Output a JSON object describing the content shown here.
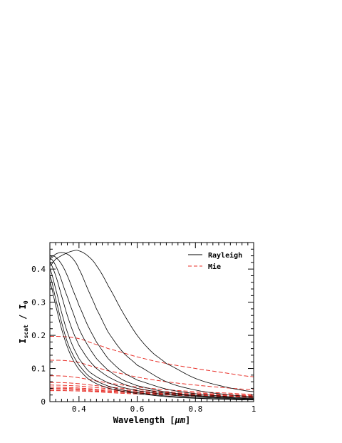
{
  "chart_data": {
    "type": "line",
    "xlabel_prefix": "Wavelength [",
    "xlabel_unit": "μm",
    "xlabel_suffix": "]",
    "ylabel_main": "I",
    "ylabel_sub": "scat",
    "ylabel_mid": " / I",
    "ylabel_sub2": "0",
    "xlim": [
      0.3,
      1.0
    ],
    "ylim": [
      0,
      0.48
    ],
    "xticks": [
      0.4,
      0.6,
      0.8,
      1.0
    ],
    "xtick_labels": [
      "0.4",
      "0.6",
      "0.8",
      "1"
    ],
    "yticks": [
      0,
      0.1,
      0.2,
      0.3,
      0.4
    ],
    "ytick_labels": [
      "0",
      "0.1",
      "0.2",
      "0.3",
      "0.4"
    ],
    "legend_position": "top-right",
    "legend": [
      {
        "name": "Rayleigh",
        "color": "#000000",
        "dash": "solid"
      },
      {
        "name": "Mie",
        "color": "#e8312a",
        "dash": "dashed"
      }
    ],
    "rayleigh_curves": [
      {
        "x": [
          0.3,
          0.32,
          0.35,
          0.38,
          0.4,
          0.43,
          0.46,
          0.5,
          0.55,
          0.6,
          0.65,
          0.7,
          0.8,
          0.9,
          1.0
        ],
        "y": [
          0.41,
          0.43,
          0.445,
          0.455,
          0.455,
          0.44,
          0.41,
          0.35,
          0.27,
          0.2,
          0.15,
          0.115,
          0.07,
          0.045,
          0.03
        ]
      },
      {
        "x": [
          0.3,
          0.32,
          0.34,
          0.36,
          0.38,
          0.4,
          0.43,
          0.46,
          0.5,
          0.55,
          0.6,
          0.7,
          0.8,
          0.9,
          1.0
        ],
        "y": [
          0.43,
          0.445,
          0.45,
          0.445,
          0.43,
          0.4,
          0.34,
          0.28,
          0.21,
          0.15,
          0.11,
          0.06,
          0.035,
          0.022,
          0.015
        ]
      },
      {
        "x": [
          0.3,
          0.31,
          0.32,
          0.34,
          0.36,
          0.38,
          0.4,
          0.43,
          0.46,
          0.5,
          0.55,
          0.6,
          0.7,
          0.8,
          0.9,
          1.0
        ],
        "y": [
          0.435,
          0.44,
          0.435,
          0.415,
          0.38,
          0.335,
          0.29,
          0.23,
          0.18,
          0.13,
          0.09,
          0.065,
          0.038,
          0.024,
          0.016,
          0.011
        ]
      },
      {
        "x": [
          0.3,
          0.31,
          0.33,
          0.35,
          0.37,
          0.4,
          0.43,
          0.46,
          0.5,
          0.55,
          0.6,
          0.7,
          0.8,
          0.9,
          1.0
        ],
        "y": [
          0.43,
          0.425,
          0.39,
          0.34,
          0.29,
          0.22,
          0.17,
          0.13,
          0.095,
          0.066,
          0.048,
          0.029,
          0.019,
          0.013,
          0.009
        ]
      },
      {
        "x": [
          0.3,
          0.32,
          0.34,
          0.36,
          0.38,
          0.4,
          0.43,
          0.46,
          0.5,
          0.55,
          0.6,
          0.7,
          0.8,
          0.9,
          1.0
        ],
        "y": [
          0.42,
          0.38,
          0.32,
          0.26,
          0.21,
          0.17,
          0.13,
          0.1,
          0.075,
          0.054,
          0.04,
          0.025,
          0.017,
          0.012,
          0.009
        ]
      },
      {
        "x": [
          0.3,
          0.32,
          0.34,
          0.36,
          0.38,
          0.4,
          0.43,
          0.46,
          0.5,
          0.55,
          0.6,
          0.7,
          0.8,
          0.9,
          1.0
        ],
        "y": [
          0.4,
          0.34,
          0.27,
          0.21,
          0.165,
          0.13,
          0.095,
          0.075,
          0.057,
          0.043,
          0.033,
          0.021,
          0.014,
          0.01,
          0.007
        ]
      },
      {
        "x": [
          0.3,
          0.32,
          0.34,
          0.36,
          0.38,
          0.4,
          0.43,
          0.46,
          0.5,
          0.55,
          0.6,
          0.7,
          0.8,
          0.9,
          1.0
        ],
        "y": [
          0.38,
          0.31,
          0.24,
          0.18,
          0.14,
          0.11,
          0.08,
          0.062,
          0.047,
          0.035,
          0.027,
          0.017,
          0.011,
          0.008,
          0.006
        ]
      },
      {
        "x": [
          0.3,
          0.32,
          0.34,
          0.36,
          0.38,
          0.4,
          0.43,
          0.46,
          0.5,
          0.55,
          0.6,
          0.7,
          0.8,
          0.9,
          1.0
        ],
        "y": [
          0.36,
          0.29,
          0.22,
          0.165,
          0.125,
          0.097,
          0.07,
          0.054,
          0.041,
          0.031,
          0.024,
          0.015,
          0.01,
          0.007,
          0.005
        ]
      }
    ],
    "mie_curves": [
      {
        "x": [
          0.3,
          0.35,
          0.4,
          0.45,
          0.5,
          0.6,
          0.7,
          0.8,
          0.9,
          1.0
        ],
        "y": [
          0.197,
          0.196,
          0.19,
          0.175,
          0.16,
          0.135,
          0.115,
          0.1,
          0.087,
          0.075
        ]
      },
      {
        "x": [
          0.3,
          0.35,
          0.4,
          0.45,
          0.5,
          0.6,
          0.7,
          0.8,
          0.9,
          1.0
        ],
        "y": [
          0.125,
          0.124,
          0.118,
          0.105,
          0.093,
          0.074,
          0.06,
          0.05,
          0.042,
          0.036
        ]
      },
      {
        "x": [
          0.3,
          0.35,
          0.4,
          0.45,
          0.5,
          0.6,
          0.7,
          0.8,
          0.9,
          1.0
        ],
        "y": [
          0.078,
          0.077,
          0.072,
          0.064,
          0.056,
          0.044,
          0.036,
          0.03,
          0.026,
          0.022
        ]
      },
      {
        "x": [
          0.3,
          0.35,
          0.4,
          0.45,
          0.5,
          0.6,
          0.7,
          0.8,
          0.9,
          1.0
        ],
        "y": [
          0.058,
          0.057,
          0.054,
          0.049,
          0.044,
          0.036,
          0.03,
          0.026,
          0.022,
          0.019
        ]
      },
      {
        "x": [
          0.3,
          0.35,
          0.4,
          0.45,
          0.5,
          0.6,
          0.7,
          0.8,
          0.9,
          1.0
        ],
        "y": [
          0.05,
          0.049,
          0.047,
          0.043,
          0.039,
          0.032,
          0.027,
          0.023,
          0.02,
          0.017
        ]
      },
      {
        "x": [
          0.3,
          0.35,
          0.4,
          0.45,
          0.5,
          0.6,
          0.7,
          0.8,
          0.9,
          1.0
        ],
        "y": [
          0.044,
          0.043,
          0.041,
          0.038,
          0.035,
          0.029,
          0.025,
          0.021,
          0.018,
          0.016
        ]
      },
      {
        "x": [
          0.3,
          0.35,
          0.4,
          0.45,
          0.5,
          0.6,
          0.7,
          0.8,
          0.9,
          1.0
        ],
        "y": [
          0.04,
          0.04,
          0.038,
          0.035,
          0.032,
          0.027,
          0.023,
          0.02,
          0.017,
          0.015
        ]
      },
      {
        "x": [
          0.3,
          0.35,
          0.4,
          0.45,
          0.5,
          0.6,
          0.7,
          0.8,
          0.9,
          1.0
        ],
        "y": [
          0.036,
          0.036,
          0.035,
          0.032,
          0.03,
          0.025,
          0.021,
          0.018,
          0.016,
          0.014
        ]
      },
      {
        "x": [
          0.3,
          0.35,
          0.4,
          0.45,
          0.5,
          0.6,
          0.7,
          0.8,
          0.9,
          1.0
        ],
        "y": [
          0.033,
          0.033,
          0.032,
          0.03,
          0.027,
          0.023,
          0.02,
          0.017,
          0.015,
          0.013
        ]
      }
    ]
  }
}
